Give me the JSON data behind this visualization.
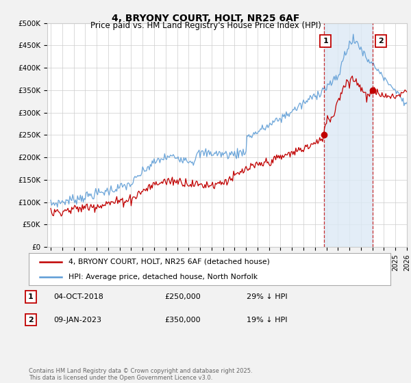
{
  "title": "4, BRYONY COURT, HOLT, NR25 6AF",
  "subtitle": "Price paid vs. HM Land Registry's House Price Index (HPI)",
  "ylim": [
    0,
    500000
  ],
  "yticks": [
    0,
    50000,
    100000,
    150000,
    200000,
    250000,
    300000,
    350000,
    400000,
    450000,
    500000
  ],
  "ytick_labels": [
    "£0",
    "£50K",
    "£100K",
    "£150K",
    "£200K",
    "£250K",
    "£300K",
    "£350K",
    "£400K",
    "£450K",
    "£500K"
  ],
  "xlim": [
    1994.7,
    2026.0
  ],
  "hpi_color": "#5b9bd5",
  "price_color": "#c00000",
  "vline1_x": 2018.76,
  "vline2_x": 2023.03,
  "shade_color": "#dce9f5",
  "transaction1_date": "04-OCT-2018",
  "transaction1_price": 250000,
  "transaction1_pct": "29% ↓ HPI",
  "transaction2_date": "09-JAN-2023",
  "transaction2_price": 350000,
  "transaction2_pct": "19% ↓ HPI",
  "legend_label1": "4, BRYONY COURT, HOLT, NR25 6AF (detached house)",
  "legend_label2": "HPI: Average price, detached house, North Norfolk",
  "footer": "Contains HM Land Registry data © Crown copyright and database right 2025.\nThis data is licensed under the Open Government Licence v3.0.",
  "background_color": "#f2f2f2",
  "plot_bg": "#ffffff"
}
